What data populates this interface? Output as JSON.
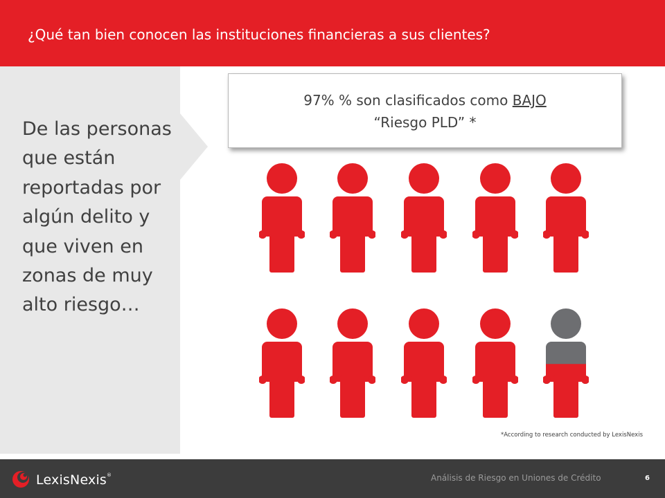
{
  "header": {
    "title": "¿Qué tan bien conocen las instituciones financieras a sus clientes?"
  },
  "side": {
    "text": "De las personas que están reportadas por algún delito y que viven en zonas de muy alto riesgo…"
  },
  "callout": {
    "line1_pre": "97% % son clasificados como ",
    "line1_emph": "BAJO",
    "line2": "“Riesgo PLD” *"
  },
  "pictogram": {
    "total": 10,
    "per_row": 5,
    "filled_fraction": 0.97,
    "fill_color": "#e41f26",
    "empty_color": "#6d6e71"
  },
  "footnote": "*According to research conducted by LexisNexis",
  "footer": {
    "brand": "LexisNexis",
    "brand_mark": "®",
    "subtitle": "Análisis de Riesgo en Uniones de Crédito",
    "page": "6"
  },
  "colors": {
    "accent": "#e41f26",
    "panel": "#e8e8e8",
    "footer_bg": "#3c3c3c",
    "text": "#404040"
  }
}
